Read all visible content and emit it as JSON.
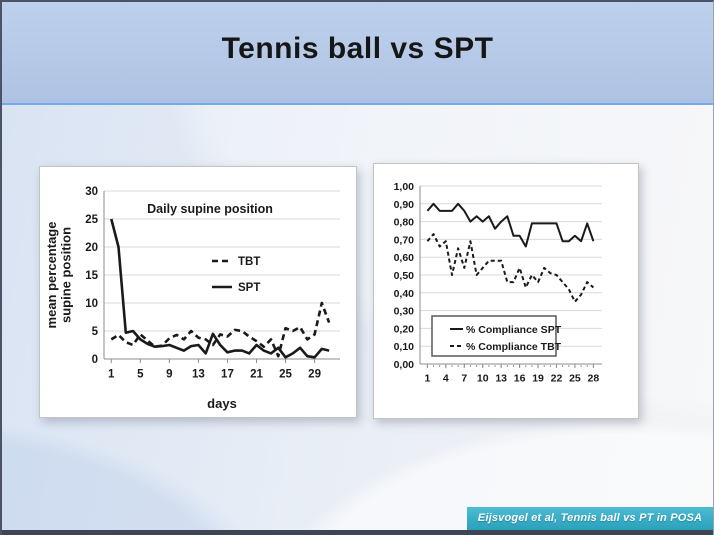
{
  "slide": {
    "title": "Tennis ball vs SPT"
  },
  "footer": {
    "citation": "Eijsvogel et al, Tennis ball vs PT in POSA"
  },
  "colors": {
    "header_bg": "#b4c7e6",
    "header_rule": "#74a9ea",
    "footer_banner": "#35abc4",
    "line": "#1a1a1a",
    "grid": "#d9d9d9",
    "axis": "#8c8c8c",
    "card_bg": "#ffffff"
  },
  "chart_data": [
    {
      "id": "supine",
      "type": "line",
      "title": "Daily supine position",
      "xlabel": "days",
      "ylabel": "mean percentage supine position",
      "ylabel_lines": [
        "mean percentage",
        "supine position"
      ],
      "x": [
        1,
        2,
        3,
        4,
        5,
        6,
        7,
        8,
        9,
        10,
        11,
        12,
        13,
        14,
        15,
        16,
        17,
        18,
        19,
        20,
        21,
        22,
        23,
        24,
        25,
        26,
        27,
        28,
        29,
        30,
        31
      ],
      "series": [
        {
          "name": "TBT",
          "style": "dashed",
          "values": [
            3.5,
            4.3,
            3.0,
            2.5,
            4.4,
            3.3,
            2.2,
            2.4,
            3.7,
            4.3,
            3.5,
            5.0,
            3.8,
            3.5,
            2.5,
            4.4,
            4.0,
            5.2,
            5.0,
            4.0,
            3.2,
            2.2,
            3.5,
            0.5,
            5.5,
            5.0,
            5.7,
            3.5,
            4.4,
            10.0,
            6.5
          ]
        },
        {
          "name": "SPT",
          "style": "solid",
          "values": [
            25.0,
            20.0,
            4.7,
            5.0,
            3.5,
            2.7,
            2.2,
            2.3,
            2.5,
            2.0,
            1.5,
            2.3,
            2.5,
            1.0,
            4.5,
            2.5,
            1.2,
            1.5,
            1.5,
            1.0,
            2.5,
            1.5,
            1.0,
            2.0,
            0.3,
            1.0,
            2.0,
            0.5,
            0.3,
            1.8,
            1.5
          ]
        }
      ],
      "ylim": [
        0,
        30
      ],
      "yticks": [
        0,
        5,
        10,
        15,
        20,
        25,
        30
      ],
      "xticks": [
        1,
        5,
        9,
        13,
        17,
        21,
        25,
        29
      ],
      "grid": true,
      "legend_position": "inside-right",
      "legend_box": false
    },
    {
      "id": "compliance",
      "type": "line",
      "title": "",
      "xlabel": "",
      "ylabel": "",
      "x": [
        1,
        2,
        3,
        4,
        5,
        6,
        7,
        8,
        9,
        10,
        11,
        12,
        13,
        14,
        15,
        16,
        17,
        18,
        19,
        20,
        21,
        22,
        23,
        24,
        25,
        26,
        27,
        28
      ],
      "series": [
        {
          "name": "% Compliance SPT",
          "style": "solid",
          "values": [
            0.86,
            0.9,
            0.86,
            0.86,
            0.86,
            0.9,
            0.86,
            0.8,
            0.83,
            0.8,
            0.83,
            0.76,
            0.8,
            0.83,
            0.72,
            0.72,
            0.66,
            0.79,
            0.79,
            0.79,
            0.79,
            0.79,
            0.69,
            0.69,
            0.72,
            0.69,
            0.79,
            0.69
          ]
        },
        {
          "name": "% Compliance TBT",
          "style": "dashed",
          "values": [
            0.69,
            0.73,
            0.66,
            0.69,
            0.5,
            0.65,
            0.54,
            0.69,
            0.5,
            0.54,
            0.58,
            0.58,
            0.58,
            0.46,
            0.46,
            0.54,
            0.43,
            0.5,
            0.46,
            0.54,
            0.51,
            0.5,
            0.46,
            0.42,
            0.35,
            0.39,
            0.46,
            0.43
          ]
        }
      ],
      "ylim": [
        0,
        1
      ],
      "yticks": [
        0,
        0.1,
        0.2,
        0.3,
        0.4,
        0.5,
        0.6,
        0.7,
        0.8,
        0.9,
        1.0
      ],
      "ytick_labels": [
        "0,00",
        "0,10",
        "0,20",
        "0,30",
        "0,40",
        "0,50",
        "0,60",
        "0,70",
        "0,80",
        "0,90",
        "1,00"
      ],
      "xticks": [
        1,
        4,
        7,
        10,
        13,
        16,
        19,
        22,
        25,
        28
      ],
      "xminor": true,
      "grid": true,
      "legend_position": "inside-bottom-left",
      "legend_box": true
    }
  ]
}
